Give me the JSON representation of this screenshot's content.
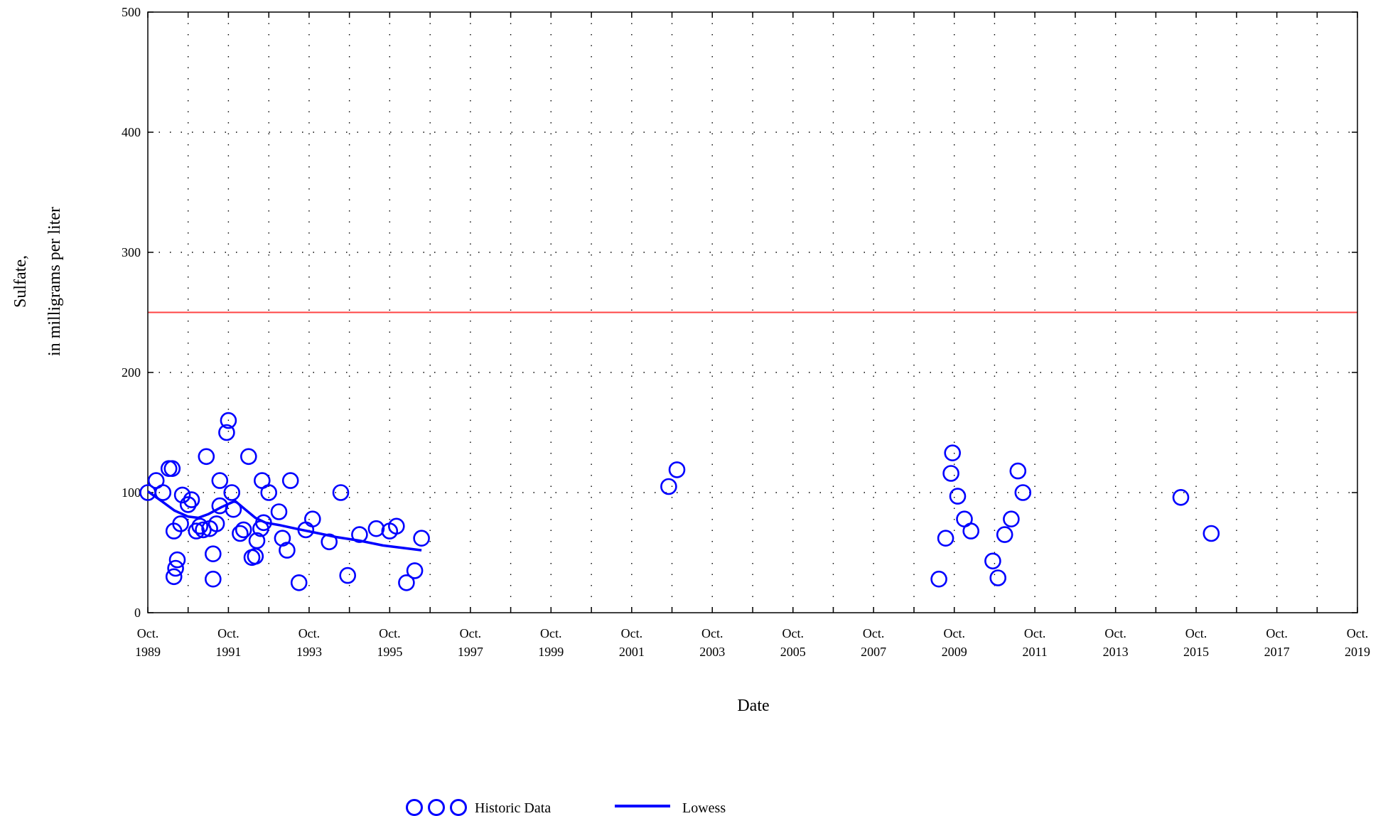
{
  "chart_data": {
    "type": "scatter",
    "xlabel": "Date",
    "ylabel_line1": "Sulfate,",
    "ylabel_line2": "in milligrams per liter",
    "xlim": [
      "1989-10-01",
      "2019-10-01"
    ],
    "ylim": [
      0,
      500
    ],
    "y_ticks": [
      0,
      100,
      200,
      300,
      400,
      500
    ],
    "x_ticks": [
      {
        "month": "Oct.",
        "year": "1989",
        "date": "1989-10-01"
      },
      {
        "month": "Oct.",
        "year": "1991",
        "date": "1991-10-01"
      },
      {
        "month": "Oct.",
        "year": "1993",
        "date": "1993-10-01"
      },
      {
        "month": "Oct.",
        "year": "1995",
        "date": "1995-10-01"
      },
      {
        "month": "Oct.",
        "year": "1997",
        "date": "1997-10-01"
      },
      {
        "month": "Oct.",
        "year": "1999",
        "date": "1999-10-01"
      },
      {
        "month": "Oct.",
        "year": "2001",
        "date": "2001-10-01"
      },
      {
        "month": "Oct.",
        "year": "2003",
        "date": "2003-10-01"
      },
      {
        "month": "Oct.",
        "year": "2005",
        "date": "2005-10-01"
      },
      {
        "month": "Oct.",
        "year": "2007",
        "date": "2007-10-01"
      },
      {
        "month": "Oct.",
        "year": "2009",
        "date": "2009-10-01"
      },
      {
        "month": "Oct.",
        "year": "2011",
        "date": "2011-10-01"
      },
      {
        "month": "Oct.",
        "year": "2013",
        "date": "2013-10-01"
      },
      {
        "month": "Oct.",
        "year": "2015",
        "date": "2015-10-01"
      },
      {
        "month": "Oct.",
        "year": "2017",
        "date": "2017-10-01"
      },
      {
        "month": "Oct.",
        "year": "2019",
        "date": "2019-10-01"
      }
    ],
    "grid": true,
    "reference_line": {
      "y": 250,
      "color": "#ff4444"
    },
    "series": [
      {
        "name": "Historic Data",
        "kind": "scatter",
        "marker": "open-circle",
        "color": "#0000ff",
        "points": [
          [
            "1989-10-01",
            100
          ],
          [
            "1989-12-15",
            110
          ],
          [
            "1990-02-15",
            100
          ],
          [
            "1990-04-10",
            120
          ],
          [
            "1990-05-10",
            120
          ],
          [
            "1990-05-25",
            68
          ],
          [
            "1990-05-25",
            30
          ],
          [
            "1990-06-10",
            37
          ],
          [
            "1990-06-25",
            44
          ],
          [
            "1990-07-25",
            74
          ],
          [
            "1990-08-10",
            98
          ],
          [
            "1990-10-01",
            90
          ],
          [
            "1990-11-01",
            94
          ],
          [
            "1990-12-15",
            68
          ],
          [
            "1991-01-15",
            72
          ],
          [
            "1991-02-15",
            69
          ],
          [
            "1991-03-15",
            130
          ],
          [
            "1991-04-15",
            70
          ],
          [
            "1991-05-15",
            28
          ],
          [
            "1991-05-15",
            49
          ],
          [
            "1991-06-15",
            74
          ],
          [
            "1991-07-15",
            89
          ],
          [
            "1991-07-15",
            110
          ],
          [
            "1991-09-15",
            150
          ],
          [
            "1991-10-01",
            160
          ],
          [
            "1991-11-01",
            100
          ],
          [
            "1991-11-15",
            86
          ],
          [
            "1992-01-15",
            66
          ],
          [
            "1992-02-15",
            69
          ],
          [
            "1992-04-01",
            130
          ],
          [
            "1992-05-01",
            46
          ],
          [
            "1992-06-01",
            47
          ],
          [
            "1992-06-15",
            60
          ],
          [
            "1992-07-20",
            70
          ],
          [
            "1992-08-01",
            110
          ],
          [
            "1992-08-15",
            75
          ],
          [
            "1992-10-01",
            100
          ],
          [
            "1993-01-01",
            84
          ],
          [
            "1993-02-01",
            62
          ],
          [
            "1993-03-15",
            52
          ],
          [
            "1993-04-15",
            110
          ],
          [
            "1993-07-01",
            25
          ],
          [
            "1993-09-01",
            69
          ],
          [
            "1993-11-01",
            78
          ],
          [
            "1994-04-01",
            59
          ],
          [
            "1994-07-15",
            100
          ],
          [
            "1994-09-15",
            31
          ],
          [
            "1995-01-01",
            65
          ],
          [
            "1995-06-01",
            70
          ],
          [
            "1995-10-01",
            68
          ],
          [
            "1995-12-01",
            72
          ],
          [
            "1996-03-01",
            25
          ],
          [
            "1996-05-15",
            35
          ],
          [
            "1996-07-15",
            62
          ],
          [
            "2002-09-01",
            105
          ],
          [
            "2002-11-15",
            119
          ],
          [
            "2009-05-15",
            28
          ],
          [
            "2009-07-15",
            62
          ],
          [
            "2009-09-01",
            116
          ],
          [
            "2009-09-15",
            133
          ],
          [
            "2009-11-01",
            97
          ],
          [
            "2010-01-01",
            78
          ],
          [
            "2010-03-01",
            68
          ],
          [
            "2010-09-15",
            43
          ],
          [
            "2010-11-01",
            29
          ],
          [
            "2011-01-01",
            65
          ],
          [
            "2011-03-01",
            78
          ],
          [
            "2011-05-01",
            118
          ],
          [
            "2011-06-15",
            100
          ],
          [
            "2015-05-15",
            96
          ],
          [
            "2016-02-15",
            66
          ]
        ]
      },
      {
        "name": "Lowess",
        "kind": "line",
        "color": "#0000ff",
        "points": [
          [
            "1989-10-01",
            101
          ],
          [
            "1990-02-01",
            93
          ],
          [
            "1990-06-01",
            85
          ],
          [
            "1990-10-01",
            80
          ],
          [
            "1991-01-01",
            79
          ],
          [
            "1991-04-01",
            82
          ],
          [
            "1991-08-01",
            88
          ],
          [
            "1991-12-01",
            93
          ],
          [
            "1992-03-01",
            86
          ],
          [
            "1992-06-01",
            79
          ],
          [
            "1992-09-01",
            75
          ],
          [
            "1993-01-01",
            73
          ],
          [
            "1993-06-01",
            70
          ],
          [
            "1994-01-01",
            66
          ],
          [
            "1994-06-01",
            63
          ],
          [
            "1995-01-01",
            60
          ],
          [
            "1995-08-01",
            56
          ],
          [
            "1996-07-15",
            52
          ]
        ]
      }
    ],
    "legend": {
      "placement": "bottom-center",
      "entries": [
        {
          "label": "Historic Data",
          "marker": "open-circle"
        },
        {
          "label": "Lowess",
          "marker": "line"
        }
      ]
    }
  }
}
